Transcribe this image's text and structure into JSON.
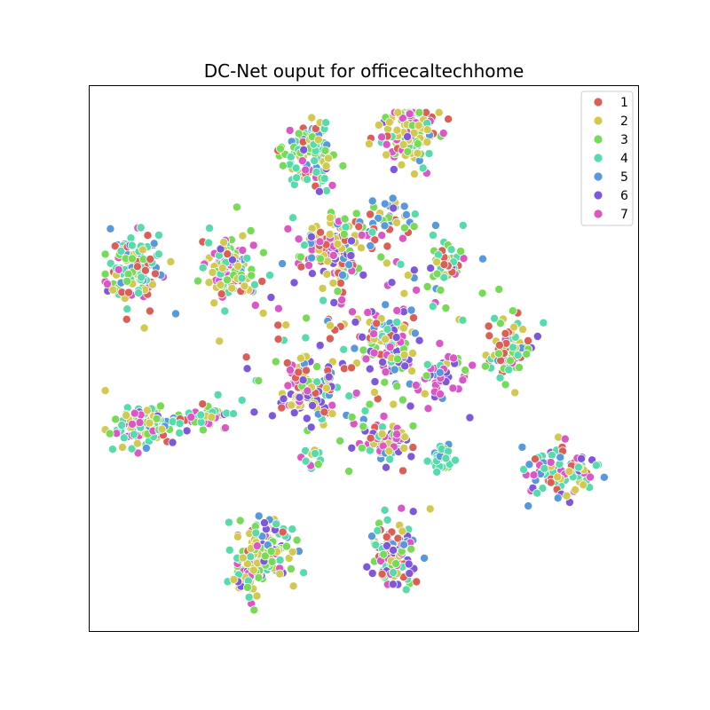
{
  "chart_data": {
    "type": "scatter",
    "title": "DC-Net ouput for officecaltechhome",
    "xlabel": "",
    "ylabel": "",
    "xlim": [
      0,
      100
    ],
    "ylim": [
      0,
      100
    ],
    "grid": false,
    "axis_ticks": false,
    "legend_position": "top-right",
    "marker_edge_color": "#ffffff",
    "series": [
      {
        "name": "1",
        "color": "#db5f57"
      },
      {
        "name": "2",
        "color": "#d3c94f"
      },
      {
        "name": "3",
        "color": "#76db57"
      },
      {
        "name": "4",
        "color": "#57dbac"
      },
      {
        "name": "5",
        "color": "#5799db"
      },
      {
        "name": "6",
        "color": "#7e57db"
      },
      {
        "name": "7",
        "color": "#db57c5"
      }
    ],
    "clusters": [
      {
        "center": [
          8.5,
          66.5
        ],
        "spread": [
          4.2,
          5.2
        ],
        "n": 120,
        "mix": [
          0.12,
          0.18,
          0.12,
          0.3,
          0.12,
          0.08,
          0.08
        ]
      },
      {
        "center": [
          25.5,
          66.5
        ],
        "spread": [
          4.5,
          5.0
        ],
        "n": 110,
        "mix": [
          0.12,
          0.22,
          0.18,
          0.2,
          0.06,
          0.04,
          0.18
        ]
      },
      {
        "center": [
          40.0,
          87.0
        ],
        "spread": [
          4.0,
          5.0
        ],
        "n": 110,
        "mix": [
          0.04,
          0.2,
          0.22,
          0.34,
          0.1,
          0.02,
          0.08
        ]
      },
      {
        "center": [
          58.5,
          91.0
        ],
        "spread": [
          4.5,
          4.5
        ],
        "n": 120,
        "mix": [
          0.14,
          0.28,
          0.2,
          0.1,
          0.04,
          0.04,
          0.2
        ]
      },
      {
        "center": [
          45.0,
          70.0
        ],
        "spread": [
          5.0,
          5.0
        ],
        "n": 120,
        "mix": [
          0.12,
          0.26,
          0.1,
          0.04,
          0.16,
          0.14,
          0.18
        ]
      },
      {
        "center": [
          54.5,
          75.5
        ],
        "spread": [
          3.0,
          3.0
        ],
        "n": 25,
        "mix": [
          0.1,
          0.15,
          0.2,
          0.05,
          0.3,
          0.2,
          0.0
        ]
      },
      {
        "center": [
          65.0,
          67.0
        ],
        "spread": [
          2.5,
          3.0
        ],
        "n": 40,
        "mix": [
          0.18,
          0.08,
          0.34,
          0.32,
          0.0,
          0.02,
          0.06
        ]
      },
      {
        "center": [
          76.5,
          51.5
        ],
        "spread": [
          3.5,
          4.5
        ],
        "n": 75,
        "mix": [
          0.3,
          0.2,
          0.2,
          0.2,
          0.04,
          0.02,
          0.04
        ]
      },
      {
        "center": [
          10.5,
          37.5
        ],
        "spread": [
          4.5,
          3.5
        ],
        "n": 125,
        "mix": [
          0.08,
          0.24,
          0.12,
          0.36,
          0.06,
          0.06,
          0.08
        ]
      },
      {
        "center": [
          21.0,
          39.5
        ],
        "spread": [
          4.5,
          2.5
        ],
        "n": 45,
        "mix": [
          0.06,
          0.16,
          0.2,
          0.22,
          0.06,
          0.08,
          0.22
        ]
      },
      {
        "center": [
          40.0,
          44.0
        ],
        "spread": [
          4.0,
          6.0
        ],
        "n": 100,
        "mix": [
          0.1,
          0.3,
          0.08,
          0.06,
          0.06,
          0.24,
          0.16
        ]
      },
      {
        "center": [
          54.0,
          52.0
        ],
        "spread": [
          4.5,
          6.0
        ],
        "n": 90,
        "mix": [
          0.12,
          0.16,
          0.14,
          0.1,
          0.12,
          0.18,
          0.18
        ]
      },
      {
        "center": [
          64.5,
          47.0
        ],
        "spread": [
          3.5,
          3.0
        ],
        "n": 45,
        "mix": [
          0.12,
          0.06,
          0.06,
          0.08,
          0.1,
          0.16,
          0.42
        ]
      },
      {
        "center": [
          53.5,
          35.0
        ],
        "spread": [
          3.5,
          3.0
        ],
        "n": 60,
        "mix": [
          0.06,
          0.12,
          0.12,
          0.2,
          0.04,
          0.2,
          0.26
        ]
      },
      {
        "center": [
          64.5,
          32.0
        ],
        "spread": [
          2.0,
          2.0
        ],
        "n": 30,
        "mix": [
          0.0,
          0.05,
          0.05,
          0.8,
          0.1,
          0.0,
          0.0
        ]
      },
      {
        "center": [
          40.5,
          32.0
        ],
        "spread": [
          1.5,
          2.0
        ],
        "n": 15,
        "mix": [
          0.0,
          0.2,
          0.2,
          0.4,
          0.0,
          0.0,
          0.2
        ]
      },
      {
        "center": [
          86.0,
          29.5
        ],
        "spread": [
          5.0,
          3.5
        ],
        "n": 110,
        "mix": [
          0.12,
          0.16,
          0.04,
          0.28,
          0.12,
          0.14,
          0.14
        ]
      },
      {
        "center": [
          32.5,
          15.5
        ],
        "spread": [
          4.0,
          4.0
        ],
        "n": 120,
        "mix": [
          0.08,
          0.28,
          0.14,
          0.2,
          0.08,
          0.12,
          0.1
        ]
      },
      {
        "center": [
          29.0,
          10.5
        ],
        "spread": [
          2.8,
          3.5
        ],
        "n": 70,
        "mix": [
          0.1,
          0.24,
          0.24,
          0.22,
          0.02,
          0.04,
          0.14
        ]
      },
      {
        "center": [
          55.0,
          14.0
        ],
        "spread": [
          3.5,
          5.0
        ],
        "n": 110,
        "mix": [
          0.12,
          0.18,
          0.14,
          0.2,
          0.04,
          0.18,
          0.14
        ]
      },
      {
        "center": [
          48.0,
          57.0
        ],
        "spread": [
          22.0,
          22.0
        ],
        "n": 170,
        "mix": [
          0.14,
          0.14,
          0.14,
          0.14,
          0.14,
          0.16,
          0.14
        ]
      }
    ]
  }
}
